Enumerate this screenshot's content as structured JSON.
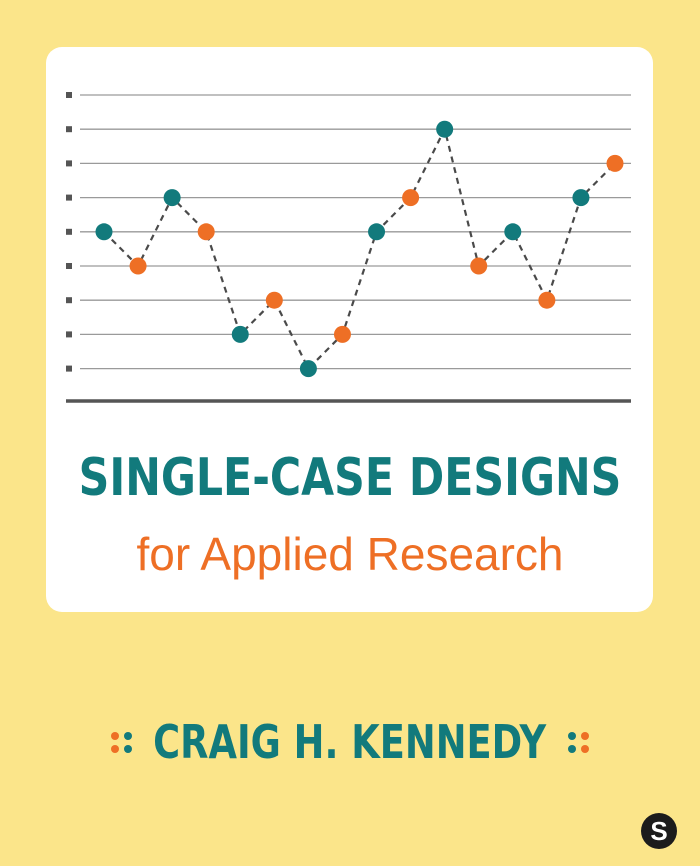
{
  "book": {
    "title_line1": "SINGLE-CASE DESIGNS",
    "title_line2": "for Applied Research",
    "author": "CRAIG H. KENNEDY",
    "publisher_mark": "S"
  },
  "colors": {
    "background": "#fbe58a",
    "teal": "#127a7c",
    "orange": "#ee6f25",
    "gridline": "#9a9a9a",
    "dashed_line": "#4a4a4a"
  },
  "chart_data": {
    "type": "line",
    "title": "",
    "xlabel": "",
    "ylabel": "",
    "grid": true,
    "legend": "none",
    "ylim": [
      0,
      9
    ],
    "y_tick_count": 9,
    "x": [
      1,
      2,
      3,
      4,
      5,
      6,
      7,
      8,
      9,
      10,
      11,
      12,
      13,
      14,
      15,
      16
    ],
    "values": [
      5,
      4,
      6,
      5,
      2,
      3,
      1,
      2,
      5,
      6,
      8,
      4,
      5,
      3,
      6,
      7
    ],
    "point_colors": [
      "teal",
      "orange",
      "teal",
      "orange",
      "teal",
      "orange",
      "teal",
      "orange",
      "teal",
      "orange",
      "teal",
      "orange",
      "teal",
      "orange",
      "teal",
      "orange"
    ],
    "line_style": "dashed"
  }
}
